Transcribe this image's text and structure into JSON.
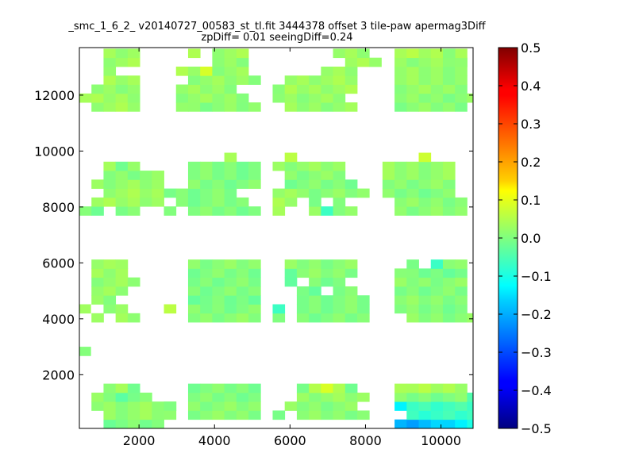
{
  "chart_data": {
    "type": "heatmap",
    "title_line1": "_smc_1_6_2_ v20140727_00583_st_tl.fit 3444378 offset 3 tile-paw apermag3Diff",
    "title_line2": "zpDiff= 0.01 seeingDiff=0.24",
    "xlabel": "",
    "ylabel": "",
    "xlim": [
      420,
      10850
    ],
    "ylim": [
      80,
      13700
    ],
    "x_ticks": [
      2000,
      4000,
      6000,
      8000,
      10000
    ],
    "y_ticks": [
      2000,
      4000,
      6000,
      8000,
      10000,
      12000
    ],
    "colorbar": {
      "min": -0.5,
      "max": 0.5,
      "ticks": [
        0.5,
        0.4,
        0.3,
        0.2,
        0.1,
        0.0,
        -0.1,
        -0.2,
        -0.3,
        -0.4,
        -0.5
      ],
      "tick_labels": [
        "0.5",
        "0.4",
        "0.3",
        "0.2",
        "0.1",
        "0.0",
        "−0.1",
        "−0.2",
        "−0.3",
        "−0.4",
        "−0.5"
      ],
      "colormap": "jet"
    },
    "cell_size": 320,
    "rows": [
      {
        "y0": 80,
        "cells": [
          [
            1060,
            5,
            -0.005
          ],
          [
            8770,
            1,
            -0.19
          ],
          [
            9090,
            1,
            -0.22
          ],
          [
            9410,
            1,
            -0.2
          ],
          [
            9730,
            1,
            -0.18
          ],
          [
            10050,
            1,
            -0.15
          ],
          [
            10370,
            1,
            -0.13
          ],
          [
            10690,
            1,
            -0.1
          ]
        ]
      },
      {
        "y0": 400,
        "cells": [
          [
            1060,
            5,
            0.02
          ],
          [
            2660,
            1,
            0.0
          ],
          [
            3300,
            6,
            0.01
          ],
          [
            5540,
            1,
            0.0
          ],
          [
            6180,
            6,
            0.01
          ],
          [
            9090,
            6,
            -0.07
          ]
        ]
      },
      {
        "y0": 720,
        "cells": [
          [
            740,
            7,
            0.02
          ],
          [
            2660,
            1,
            0.0
          ],
          [
            3300,
            6,
            0.01
          ],
          [
            5860,
            6,
            0.01
          ],
          [
            8770,
            1,
            -0.12
          ],
          [
            9090,
            6,
            -0.06
          ]
        ]
      },
      {
        "y0": 1040,
        "cells": [
          [
            740,
            2,
            0.01
          ],
          [
            1380,
            1,
            -0.02
          ],
          [
            1700,
            2,
            0.0
          ],
          [
            3300,
            6,
            0.0
          ],
          [
            6180,
            6,
            0.02
          ],
          [
            8770,
            6,
            0.0
          ],
          [
            10690,
            1,
            -0.03
          ]
        ]
      },
      {
        "y0": 1360,
        "cells": [
          [
            1060,
            1,
            0.01
          ],
          [
            1380,
            1,
            0.03
          ],
          [
            1700,
            1,
            -0.03
          ],
          [
            3300,
            6,
            0.0
          ],
          [
            6180,
            1,
            0.0
          ],
          [
            6500,
            1,
            0.05
          ],
          [
            6820,
            1,
            0.08
          ],
          [
            7140,
            1,
            0.03
          ],
          [
            7460,
            1,
            0.0
          ],
          [
            8770,
            1,
            0.05
          ],
          [
            9090,
            5,
            0.04
          ]
        ]
      },
      {
        "y0": 2680,
        "cells": [
          [
            400,
            1,
            0.02
          ]
        ]
      },
      {
        "y0": 3880,
        "cells": [
          [
            740,
            1,
            0.02
          ],
          [
            1380,
            1,
            0.02
          ],
          [
            1700,
            1,
            0.03
          ],
          [
            3300,
            6,
            0.01
          ],
          [
            5540,
            1,
            0.0
          ],
          [
            6180,
            6,
            0.0
          ],
          [
            9090,
            6,
            0.01
          ]
        ]
      },
      {
        "y0": 4200,
        "cells": [
          [
            400,
            1,
            0.04
          ],
          [
            1060,
            2,
            0.01
          ],
          [
            2660,
            1,
            0.05
          ],
          [
            3300,
            6,
            0.0
          ],
          [
            5540,
            1,
            -0.05
          ],
          [
            6180,
            6,
            0.0
          ],
          [
            8770,
            6,
            0.0
          ]
        ]
      },
      {
        "y0": 4520,
        "cells": [
          [
            740,
            2,
            0.01
          ],
          [
            3300,
            6,
            -0.01
          ],
          [
            6180,
            6,
            0.0
          ],
          [
            8770,
            6,
            0.01
          ]
        ]
      },
      {
        "y0": 4840,
        "cells": [
          [
            740,
            3,
            0.02
          ],
          [
            3300,
            6,
            0.0
          ],
          [
            6180,
            2,
            -0.02
          ],
          [
            7140,
            2,
            0.01
          ],
          [
            8770,
            6,
            0.0
          ]
        ]
      },
      {
        "y0": 5160,
        "cells": [
          [
            740,
            4,
            0.02
          ],
          [
            3300,
            6,
            0.0
          ],
          [
            5860,
            1,
            -0.03
          ],
          [
            6500,
            3,
            0.0
          ],
          [
            8770,
            6,
            0.01
          ]
        ]
      },
      {
        "y0": 5480,
        "cells": [
          [
            740,
            2,
            0.03
          ],
          [
            1380,
            1,
            0.02
          ],
          [
            3300,
            6,
            0.0
          ],
          [
            5860,
            1,
            -0.02
          ],
          [
            6180,
            5,
            0.01
          ],
          [
            8770,
            1,
            0.0
          ],
          [
            9090,
            5,
            -0.01
          ]
        ]
      },
      {
        "y0": 5800,
        "cells": [
          [
            740,
            2,
            0.03
          ],
          [
            1380,
            1,
            0.03
          ],
          [
            3300,
            6,
            0.01
          ],
          [
            5860,
            6,
            0.01
          ],
          [
            9090,
            1,
            0.01
          ],
          [
            9730,
            1,
            -0.06
          ],
          [
            10050,
            1,
            0.01
          ],
          [
            10370,
            1,
            0.01
          ]
        ]
      },
      {
        "y0": 7700,
        "cells": [
          [
            420,
            2,
            -0.01
          ],
          [
            1380,
            2,
            0.01
          ],
          [
            2660,
            1,
            0.01
          ],
          [
            3300,
            6,
            0.0
          ],
          [
            5540,
            1,
            0.03
          ],
          [
            6500,
            1,
            0.01
          ],
          [
            6820,
            1,
            -0.05
          ],
          [
            7140,
            1,
            0.01
          ],
          [
            7460,
            1,
            0.02
          ],
          [
            8770,
            6,
            0.01
          ]
        ]
      },
      {
        "y0": 8020,
        "cells": [
          [
            740,
            6,
            0.03
          ],
          [
            2980,
            6,
            0.0
          ],
          [
            5540,
            2,
            0.03
          ],
          [
            6500,
            1,
            0.01
          ],
          [
            7140,
            1,
            0.01
          ],
          [
            8770,
            6,
            0.01
          ]
        ]
      },
      {
        "y0": 8340,
        "cells": [
          [
            1060,
            5,
            0.03
          ],
          [
            2660,
            6,
            0.0
          ],
          [
            5540,
            2,
            0.02
          ],
          [
            6180,
            6,
            0.01
          ],
          [
            8450,
            6,
            0.0
          ]
        ]
      },
      {
        "y0": 8660,
        "cells": [
          [
            740,
            6,
            0.02
          ],
          [
            3300,
            6,
            0.0
          ],
          [
            5860,
            6,
            0.0
          ],
          [
            8450,
            6,
            0.01
          ]
        ]
      },
      {
        "y0": 8980,
        "cells": [
          [
            1060,
            5,
            0.01
          ],
          [
            3300,
            6,
            0.0
          ],
          [
            5860,
            5,
            0.01
          ],
          [
            8450,
            6,
            0.02
          ]
        ]
      },
      {
        "y0": 9300,
        "cells": [
          [
            1060,
            1,
            0.02
          ],
          [
            1380,
            1,
            0.0
          ],
          [
            1700,
            1,
            0.03
          ],
          [
            3300,
            6,
            0.0
          ],
          [
            5540,
            6,
            0.02
          ],
          [
            8450,
            6,
            0.02
          ]
        ]
      },
      {
        "y0": 9620,
        "cells": [
          [
            4260,
            1,
            0.04
          ],
          [
            5860,
            1,
            0.05
          ],
          [
            9410,
            1,
            0.06
          ]
        ]
      },
      {
        "y0": 11420,
        "cells": [
          [
            740,
            3,
            0.03
          ],
          [
            1700,
            1,
            0.03
          ],
          [
            2980,
            1,
            0.02
          ],
          [
            3300,
            6,
            0.01
          ],
          [
            5860,
            6,
            0.02
          ],
          [
            8770,
            6,
            0.01
          ]
        ]
      },
      {
        "y0": 11740,
        "cells": [
          [
            420,
            1,
            0.03
          ],
          [
            740,
            4,
            0.03
          ],
          [
            2980,
            6,
            0.02
          ],
          [
            5540,
            6,
            0.02
          ],
          [
            8770,
            6,
            0.01
          ],
          [
            10690,
            1,
            0.02
          ]
        ]
      },
      {
        "y0": 12060,
        "cells": [
          [
            740,
            4,
            0.02
          ],
          [
            2980,
            5,
            0.02
          ],
          [
            5540,
            1,
            0.0
          ],
          [
            5860,
            6,
            0.03
          ],
          [
            8770,
            6,
            0.02
          ]
        ]
      },
      {
        "y0": 12380,
        "cells": [
          [
            1060,
            3,
            0.03
          ],
          [
            3300,
            6,
            0.02
          ],
          [
            5860,
            6,
            0.03
          ],
          [
            8770,
            6,
            0.02
          ]
        ]
      },
      {
        "y0": 12700,
        "cells": [
          [
            1060,
            1,
            0.02
          ],
          [
            2980,
            2,
            0.04
          ],
          [
            3620,
            1,
            0.07
          ],
          [
            3940,
            3,
            0.02
          ],
          [
            6820,
            3,
            0.03
          ],
          [
            8770,
            6,
            0.02
          ]
        ]
      },
      {
        "y0": 13020,
        "cells": [
          [
            1060,
            3,
            0.03
          ],
          [
            3940,
            3,
            0.02
          ],
          [
            7460,
            3,
            0.03
          ],
          [
            8770,
            6,
            0.02
          ],
          [
            10370,
            1,
            0.0
          ]
        ]
      },
      {
        "y0": 13340,
        "cells": [
          [
            1060,
            3,
            0.03
          ],
          [
            3300,
            1,
            0.03
          ],
          [
            3940,
            3,
            0.03
          ],
          [
            7140,
            3,
            0.03
          ],
          [
            8770,
            6,
            0.04
          ],
          [
            10050,
            1,
            0.0
          ]
        ]
      }
    ]
  }
}
